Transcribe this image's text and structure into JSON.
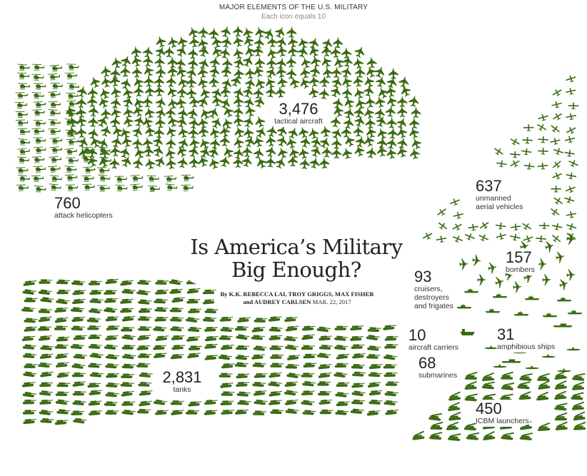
{
  "header": {
    "title": "MAJOR ELEMENTS OF THE U.S. MILITARY",
    "subtitle": "Each icon equals 10"
  },
  "headline": {
    "line1": "Is America’s Military",
    "line2": "Big Enough?"
  },
  "byline": {
    "line1": "By K.K. REBECCA LAI, TROY GRIGGS, MAX FISHER",
    "line2_authors": "and AUDREY CARLSEN",
    "date": "MAR. 22, 2017"
  },
  "colors": {
    "icon_green": "#3a6b12",
    "text": "#333333"
  },
  "categories": [
    {
      "key": "tactical_aircraft",
      "count": "3,476",
      "label": "tactical aircraft",
      "icon": "fighter-jet-icon",
      "icons": 348
    },
    {
      "key": "attack_helicopters",
      "count": "760",
      "label": "attack helicopters",
      "icon": "helicopter-icon",
      "icons": 76
    },
    {
      "key": "uav",
      "count": "637",
      "label1": "unmanned",
      "label2": "aerial vehicles",
      "icon": "drone-icon",
      "icons": 64
    },
    {
      "key": "bombers",
      "count": "157",
      "label": "bombers",
      "icon": "bomber-icon",
      "icons": 16
    },
    {
      "key": "cruisers",
      "count": "93",
      "label1": "cruisers,",
      "label2": "destroyers",
      "label3": "and frigates",
      "icon": "warship-icon",
      "icons": 9
    },
    {
      "key": "carriers",
      "count": "10",
      "label": "aircraft carriers",
      "icon": "aircraft-carrier-icon",
      "icons": 1
    },
    {
      "key": "amphibious",
      "count": "31",
      "label": "amphibious ships",
      "icon": "amphibious-ship-icon",
      "icons": 3
    },
    {
      "key": "submarines",
      "count": "68",
      "label": "submarines",
      "icon": "submarine-icon",
      "icons": 7
    },
    {
      "key": "tanks",
      "count": "2,831",
      "label": "tanks",
      "icon": "tank-icon",
      "icons": 283
    },
    {
      "key": "icbm",
      "count": "450",
      "label": "ICBM launchers",
      "icon": "missile-launcher-icon",
      "icons": 45
    }
  ]
}
